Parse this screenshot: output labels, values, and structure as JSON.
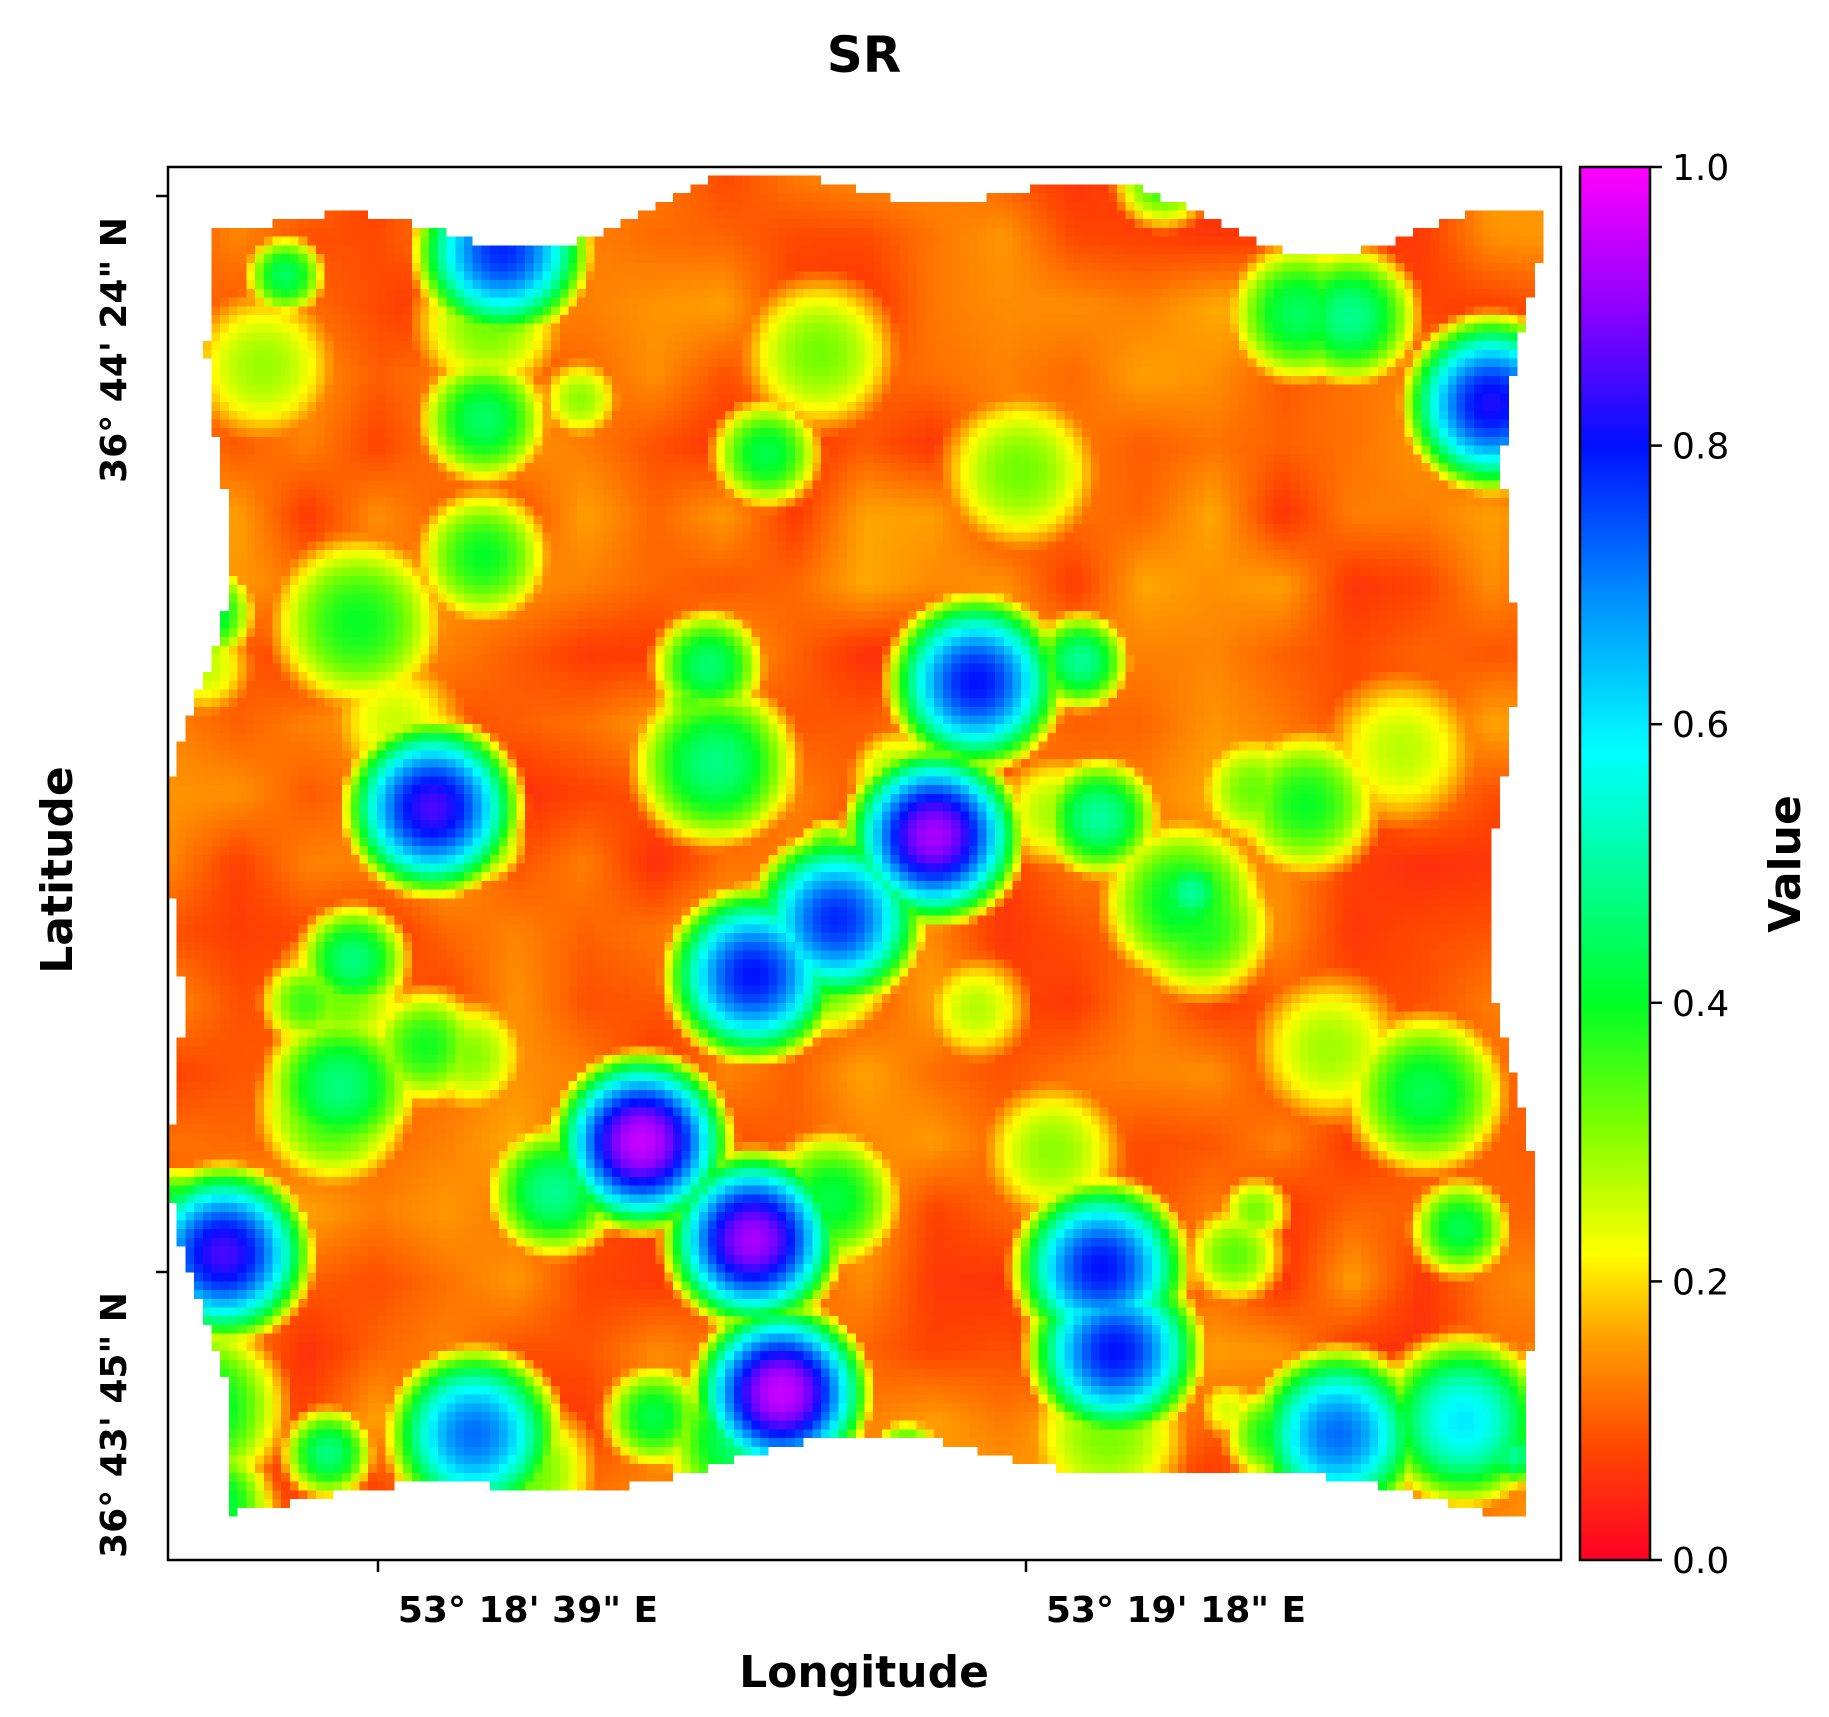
{
  "chart_data": {
    "type": "heatmap",
    "title": "SR",
    "xlabel": "Longitude",
    "ylabel": "Latitude",
    "x_tick_labels": [
      "53° 18' 39\" E",
      "53° 19' 18\" E"
    ],
    "y_tick_labels": [
      "36° 44' 24\" N",
      "36° 43' 45\" N"
    ],
    "colorbar": {
      "label": "Value",
      "range": [
        0.0,
        1.0
      ],
      "ticks": [
        "0.0",
        "0.2",
        "0.4",
        "0.6",
        "0.8",
        "1.0"
      ],
      "colormap": "gist_rainbow_r",
      "colors": [
        "#ff0026",
        "#ff8c00",
        "#ffff00",
        "#00ff26",
        "#00ffff",
        "#0010ff",
        "#ff00ff"
      ]
    },
    "hotspots": [
      {
        "lon_frac": 0.24,
        "lat_frac": 0.06,
        "value": 0.78
      },
      {
        "lon_frac": 0.95,
        "lat_frac": 0.17,
        "value": 0.82
      },
      {
        "lon_frac": 0.58,
        "lat_frac": 0.37,
        "value": 0.8
      },
      {
        "lon_frac": 0.19,
        "lat_frac": 0.46,
        "value": 0.85
      },
      {
        "lon_frac": 0.55,
        "lat_frac": 0.48,
        "value": 0.92
      },
      {
        "lon_frac": 0.48,
        "lat_frac": 0.54,
        "value": 0.78
      },
      {
        "lon_frac": 0.42,
        "lat_frac": 0.58,
        "value": 0.8
      },
      {
        "lon_frac": 0.34,
        "lat_frac": 0.7,
        "value": 0.95
      },
      {
        "lon_frac": 0.04,
        "lat_frac": 0.78,
        "value": 0.85
      },
      {
        "lon_frac": 0.42,
        "lat_frac": 0.77,
        "value": 0.92
      },
      {
        "lon_frac": 0.67,
        "lat_frac": 0.79,
        "value": 0.8
      },
      {
        "lon_frac": 0.68,
        "lat_frac": 0.85,
        "value": 0.8
      },
      {
        "lon_frac": 0.44,
        "lat_frac": 0.88,
        "value": 0.95
      },
      {
        "lon_frac": 0.22,
        "lat_frac": 0.91,
        "value": 0.72
      },
      {
        "lon_frac": 0.84,
        "lat_frac": 0.91,
        "value": 0.72
      },
      {
        "lon_frac": 0.93,
        "lat_frac": 0.9,
        "value": 0.6
      }
    ],
    "background_value": 0.05
  }
}
